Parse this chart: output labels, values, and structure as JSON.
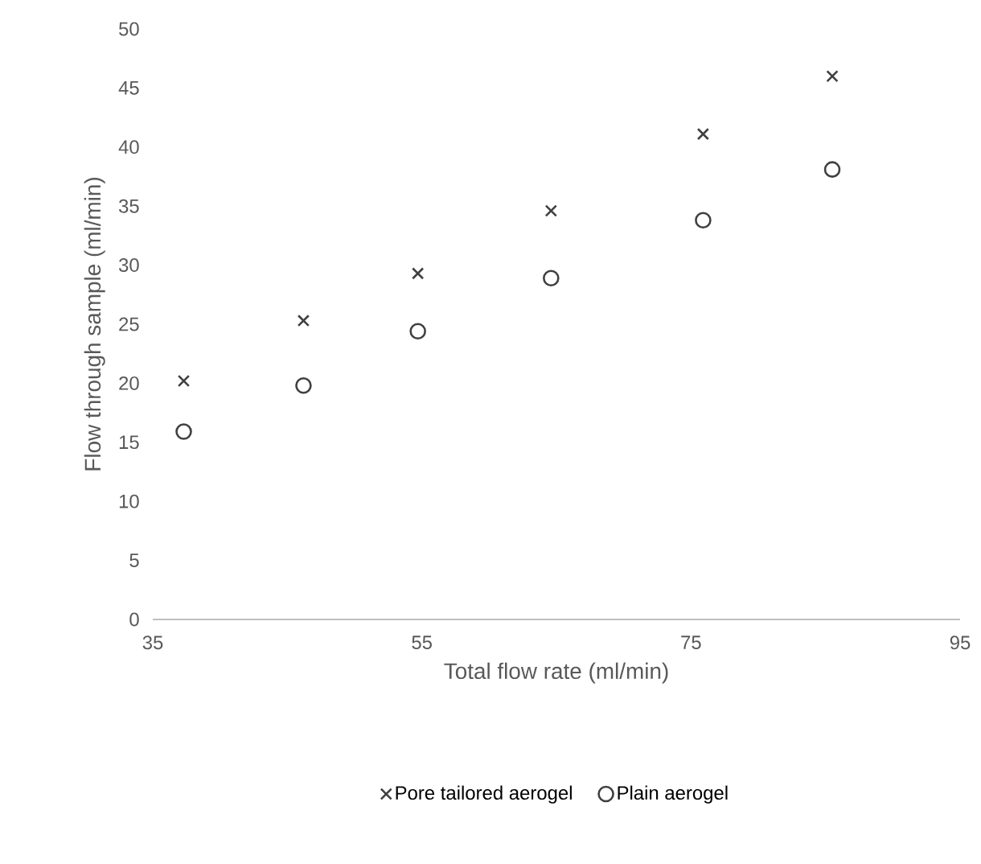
{
  "chart_data": {
    "type": "scatter",
    "xlabel": "Total flow rate (ml/min)",
    "ylabel": "Flow through sample (ml/min)",
    "xlim": [
      35,
      95
    ],
    "xticks": [
      35,
      55,
      75,
      95
    ],
    "ylim": [
      0,
      50
    ],
    "yticks": [
      0,
      5,
      10,
      15,
      20,
      25,
      30,
      35,
      40,
      45,
      50
    ],
    "grid": false,
    "legend": "bottom",
    "series": [
      {
        "name": "Pore tailored aerogel",
        "color": "#404040",
        "marker": "cross",
        "x": [
          37.3,
          46.2,
          54.7,
          64.6,
          75.9,
          85.5
        ],
        "values": [
          20.2,
          25.3,
          29.3,
          34.6,
          41.1,
          46.0
        ]
      },
      {
        "name": "Plain aerogel",
        "color": "#404040",
        "marker": "circle",
        "x": [
          37.3,
          46.2,
          54.7,
          64.6,
          75.9,
          85.5
        ],
        "values": [
          15.9,
          19.8,
          24.4,
          28.9,
          33.8,
          38.1
        ]
      }
    ]
  }
}
